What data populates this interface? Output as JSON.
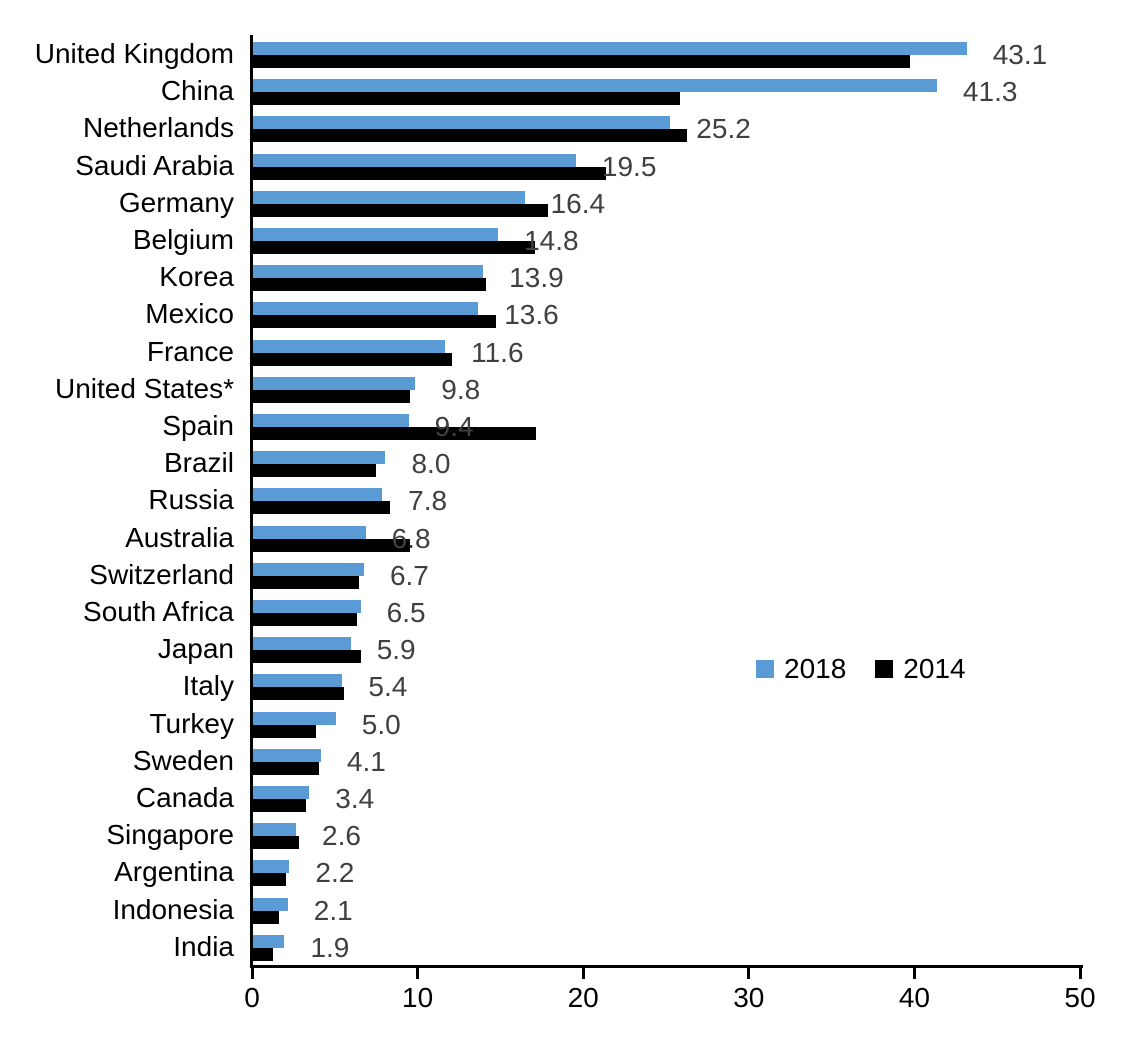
{
  "chart_data": {
    "type": "bar",
    "orientation": "horizontal",
    "title": "",
    "xlabel": "",
    "ylabel": "",
    "xlim": [
      0,
      50
    ],
    "x_ticks": [
      0,
      10,
      20,
      30,
      40,
      50
    ],
    "grid": false,
    "legend_position": "middle-right",
    "categories": [
      "United Kingdom",
      "China",
      "Netherlands",
      "Saudi Arabia",
      "Germany",
      "Belgium",
      "Korea",
      "Mexico",
      "France",
      "United States*",
      "Spain",
      "Brazil",
      "Russia",
      "Australia",
      "Switzerland",
      "South Africa",
      "Japan",
      "Italy",
      "Turkey",
      "Sweden",
      "Canada",
      "Singapore",
      "Argentina",
      "Indonesia",
      "India"
    ],
    "series": [
      {
        "name": "2018",
        "color": "#5B9BD5",
        "values": [
          43.1,
          41.3,
          25.2,
          19.5,
          16.4,
          14.8,
          13.9,
          13.6,
          11.6,
          9.8,
          9.4,
          8.0,
          7.8,
          6.8,
          6.7,
          6.5,
          5.9,
          5.4,
          5.0,
          4.1,
          3.4,
          2.6,
          2.2,
          2.1,
          1.9
        ],
        "data_labels": [
          "43.1",
          "41.3",
          "25.2",
          "19.5",
          "16.4",
          "14.8",
          "13.9",
          "13.6",
          "11.6",
          "9.8",
          "9.4",
          "8.0",
          "7.8",
          "6.8",
          "6.7",
          "6.5",
          "5.9",
          "5.4",
          "5.0",
          "4.1",
          "3.4",
          "2.6",
          "2.2",
          "2.1",
          "1.9"
        ]
      },
      {
        "name": "2014",
        "color": "#000000",
        "values": [
          39.7,
          25.8,
          26.2,
          21.3,
          17.8,
          17.0,
          14.1,
          14.7,
          12.0,
          9.5,
          17.1,
          7.4,
          8.3,
          9.5,
          6.4,
          6.3,
          6.5,
          5.5,
          3.8,
          4.0,
          3.2,
          2.8,
          2.0,
          1.6,
          1.2
        ]
      }
    ],
    "data_label_color": "#404040",
    "axis_color": "#000000"
  },
  "legend": {
    "items": [
      {
        "label": "2018",
        "color": "#5B9BD5"
      },
      {
        "label": "2014",
        "color": "#000000"
      }
    ]
  }
}
